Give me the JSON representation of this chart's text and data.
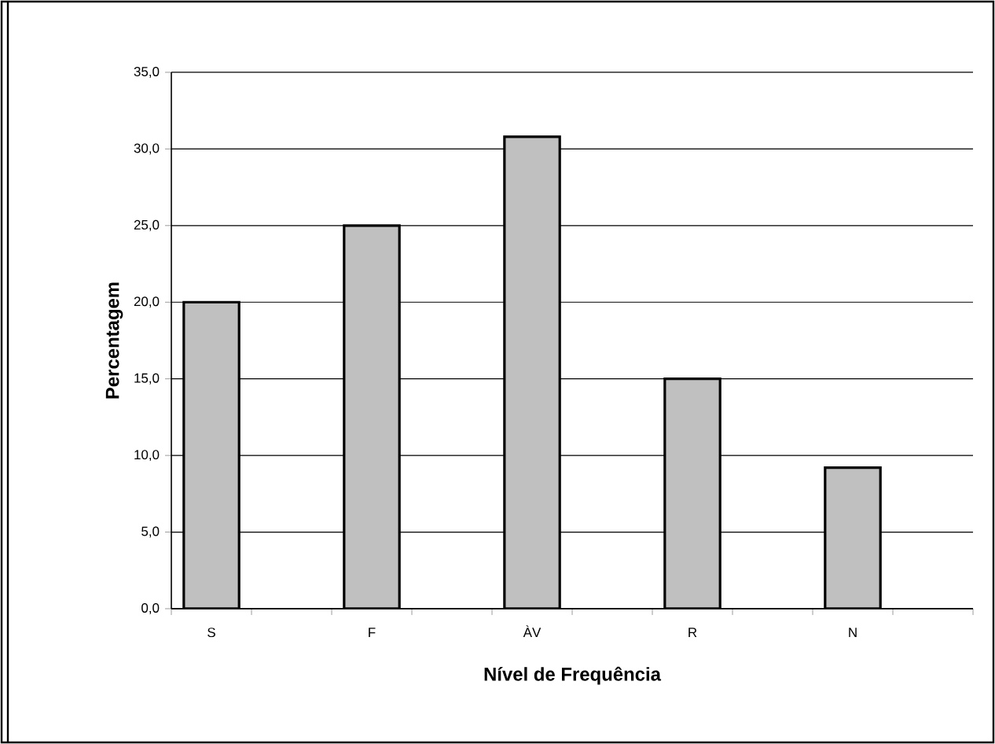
{
  "chart_data": {
    "type": "bar",
    "xlabel": "Nível de Frequência",
    "ylabel": "Percentagem",
    "categories": [
      "S",
      null,
      "F",
      null,
      "ÀV",
      null,
      "R",
      null,
      "N",
      null
    ],
    "values": [
      20,
      null,
      25,
      null,
      30.8,
      null,
      15,
      null,
      9.2,
      null
    ],
    "color": "#c0c0c0",
    "ylim": [
      0,
      35
    ],
    "yticks": [
      {
        "value": 0,
        "label": "0,0"
      },
      {
        "value": 5,
        "label": "5,0"
      },
      {
        "value": 10,
        "label": "10,0"
      },
      {
        "value": 15,
        "label": "15,0"
      },
      {
        "value": 20,
        "label": "20,0"
      },
      {
        "value": 25,
        "label": "25,0"
      },
      {
        "value": 30,
        "label": "30,0"
      },
      {
        "value": 35,
        "label": "35,0"
      }
    ],
    "grid": "y"
  }
}
